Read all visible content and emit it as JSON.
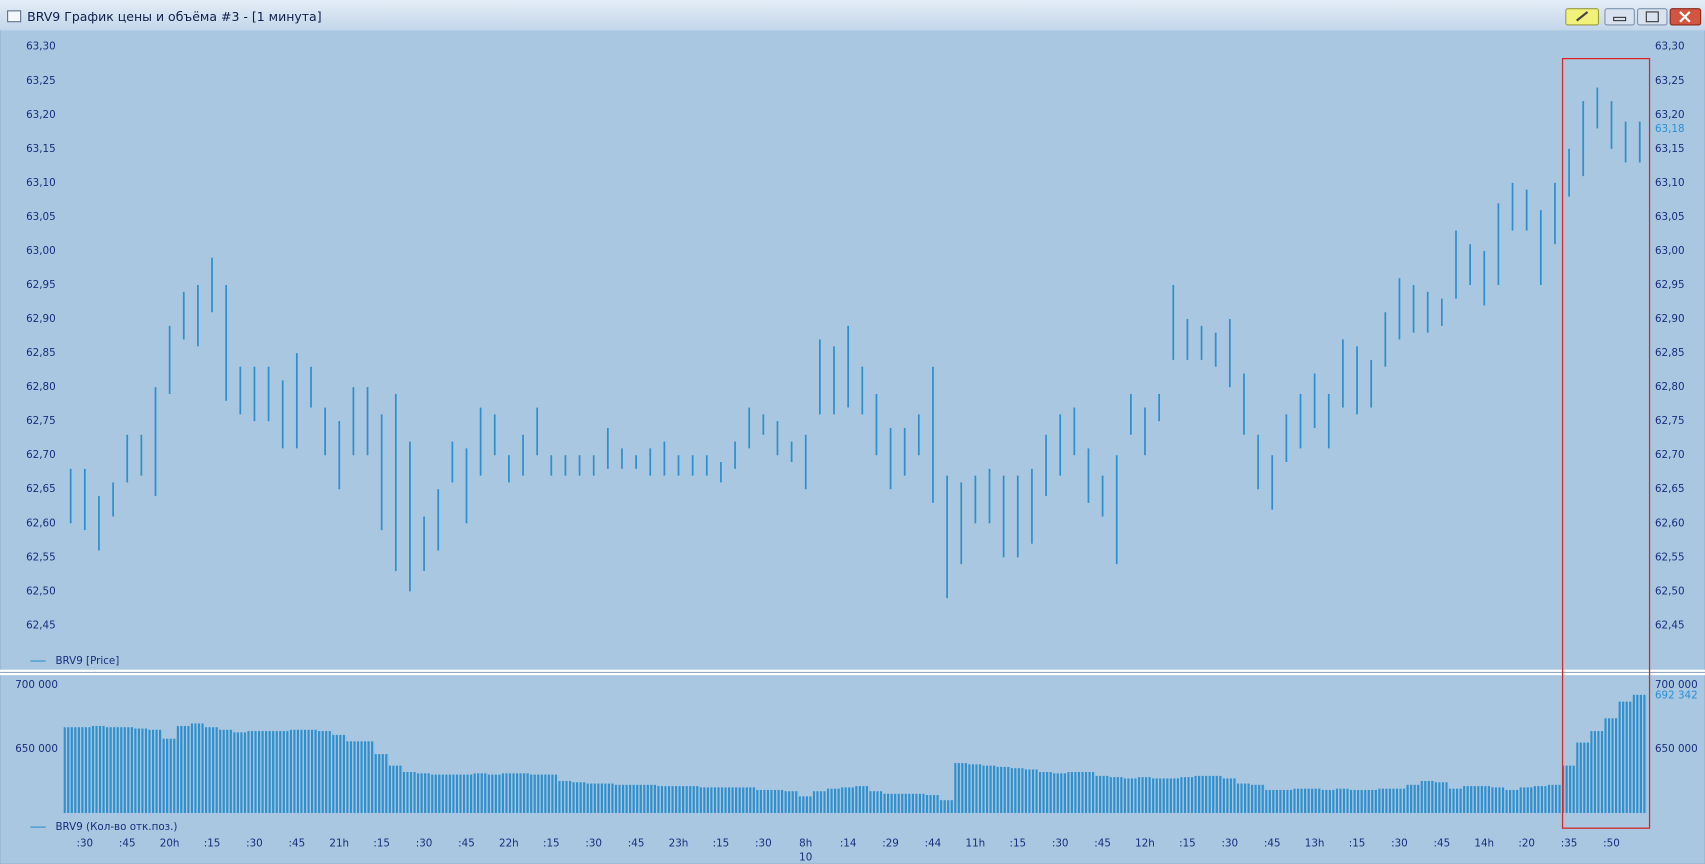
{
  "window": {
    "title": "BRV9 График цены и объёма #3 - [1 минута]"
  },
  "chart_data": [
    {
      "type": "range-bar",
      "series": [
        {
          "name": "BRV9 [Price]",
          "color": "#2f8fcc",
          "high": [
            62.68,
            62.68,
            62.64,
            62.66,
            62.73,
            62.73,
            62.8,
            62.89,
            62.94,
            62.95,
            62.99,
            62.95,
            62.83,
            62.83,
            62.83,
            62.81,
            62.85,
            62.83,
            62.77,
            62.75,
            62.8,
            62.8,
            62.76,
            62.79,
            62.72,
            62.61,
            62.65,
            62.72,
            62.71,
            62.77,
            62.76,
            62.7,
            62.73,
            62.77,
            62.7,
            62.7,
            62.7,
            62.7,
            62.74,
            62.71,
            62.7,
            62.71,
            62.72,
            62.7,
            62.7,
            62.7,
            62.69,
            62.72,
            62.77,
            62.76,
            62.75,
            62.72,
            62.73,
            62.87,
            62.86,
            62.89,
            62.83,
            62.79,
            62.74,
            62.74,
            62.76,
            62.83,
            62.67,
            62.66,
            62.67,
            62.68,
            62.67,
            62.67,
            62.68,
            62.73,
            62.76,
            62.77,
            62.71,
            62.67,
            62.7,
            62.79,
            62.77,
            62.79,
            62.95,
            62.9,
            62.89,
            62.88,
            62.9,
            62.82,
            62.73,
            62.7,
            62.76,
            62.79,
            62.82,
            62.79,
            62.87,
            62.86,
            62.84,
            62.91,
            62.96,
            62.95,
            62.94,
            62.93,
            63.03,
            63.01,
            63.0,
            63.07,
            63.1,
            63.09,
            63.06,
            63.1,
            63.15,
            63.22,
            63.24,
            63.22,
            63.19,
            63.19
          ],
          "low": [
            62.6,
            62.59,
            62.56,
            62.61,
            62.66,
            62.67,
            62.64,
            62.79,
            62.87,
            62.86,
            62.91,
            62.78,
            62.76,
            62.75,
            62.75,
            62.71,
            62.71,
            62.77,
            62.7,
            62.65,
            62.7,
            62.7,
            62.59,
            62.53,
            62.5,
            62.53,
            62.56,
            62.66,
            62.6,
            62.67,
            62.7,
            62.66,
            62.67,
            62.7,
            62.67,
            62.67,
            62.67,
            62.67,
            62.68,
            62.68,
            62.68,
            62.67,
            62.67,
            62.67,
            62.67,
            62.67,
            62.66,
            62.68,
            62.71,
            62.73,
            62.7,
            62.69,
            62.65,
            62.76,
            62.76,
            62.77,
            62.76,
            62.7,
            62.65,
            62.67,
            62.7,
            62.63,
            62.49,
            62.54,
            62.6,
            62.6,
            62.55,
            62.55,
            62.57,
            62.64,
            62.67,
            62.7,
            62.63,
            62.61,
            62.54,
            62.73,
            62.7,
            62.75,
            62.84,
            62.84,
            62.84,
            62.83,
            62.8,
            62.73,
            62.65,
            62.62,
            62.69,
            62.71,
            62.74,
            62.71,
            62.77,
            62.76,
            62.77,
            62.83,
            62.87,
            62.88,
            62.88,
            62.89,
            62.93,
            62.95,
            62.92,
            62.95,
            63.03,
            63.03,
            62.95,
            63.01,
            63.08,
            63.11,
            63.18,
            63.15,
            63.13,
            63.13
          ]
        }
      ],
      "ylim": [
        62.42,
        63.32
      ],
      "yticks": [
        {
          "value": 62.45,
          "label": "62,45"
        },
        {
          "value": 62.5,
          "label": "62,50"
        },
        {
          "value": 62.55,
          "label": "62,55"
        },
        {
          "value": 62.6,
          "label": "62,60"
        },
        {
          "value": 62.65,
          "label": "62,65"
        },
        {
          "value": 62.7,
          "label": "62,70"
        },
        {
          "value": 62.75,
          "label": "62,75"
        },
        {
          "value": 62.8,
          "label": "62,80"
        },
        {
          "value": 62.85,
          "label": "62,85"
        },
        {
          "value": 62.9,
          "label": "62,90"
        },
        {
          "value": 62.95,
          "label": "62,95"
        },
        {
          "value": 63.0,
          "label": "63,00"
        },
        {
          "value": 63.05,
          "label": "63,05"
        },
        {
          "value": 63.1,
          "label": "63,10"
        },
        {
          "value": 63.15,
          "label": "63,15"
        },
        {
          "value": 63.2,
          "label": "63,20"
        },
        {
          "value": 63.25,
          "label": "63,25"
        },
        {
          "value": 63.3,
          "label": "63,30"
        }
      ],
      "last_value": {
        "value": 63.18,
        "label": "63,18"
      }
    },
    {
      "type": "bar",
      "series": [
        {
          "name": "BRV9 (Кол-во отк.поз.)",
          "color": "#2f8fcc",
          "values": [
            667000,
            667000,
            668000,
            667000,
            667000,
            666000,
            665000,
            658000,
            668000,
            670000,
            667000,
            665000,
            663000,
            664000,
            664000,
            664000,
            665000,
            665000,
            664000,
            661000,
            656000,
            656000,
            646000,
            637000,
            632000,
            631000,
            630000,
            630000,
            630000,
            631000,
            630000,
            631000,
            631000,
            630000,
            630000,
            625000,
            624000,
            623000,
            623000,
            622000,
            622000,
            622000,
            621000,
            621000,
            621000,
            620000,
            620000,
            620000,
            620000,
            618000,
            618000,
            617000,
            613000,
            617000,
            619000,
            620000,
            621000,
            617000,
            615000,
            615000,
            615000,
            614000,
            610000,
            639000,
            638000,
            637000,
            636000,
            635000,
            634000,
            632000,
            631000,
            632000,
            632000,
            629000,
            628000,
            627000,
            628000,
            627000,
            627000,
            628000,
            629000,
            629000,
            627000,
            623000,
            622000,
            618000,
            618000,
            619000,
            619000,
            618000,
            619000,
            618000,
            618000,
            619000,
            619000,
            622000,
            625000,
            624000,
            619000,
            621000,
            621000,
            620000,
            618000,
            620000,
            621000,
            622000,
            637000,
            655000,
            664000,
            674000,
            687000,
            692342
          ]
        }
      ],
      "ylim": [
        600000,
        706000
      ],
      "yticks": [
        {
          "value": 650000,
          "label": "650 000"
        },
        {
          "value": 700000,
          "label": "700 000"
        }
      ],
      "last_value": {
        "value": 692342,
        "label": "692 342"
      },
      "categories": [
        null,
        ":30",
        null,
        null,
        ":45",
        null,
        null,
        "20h",
        null,
        null,
        ":15",
        null,
        null,
        ":30",
        null,
        null,
        ":45",
        null,
        null,
        "21h",
        null,
        null,
        ":15",
        null,
        null,
        ":30",
        null,
        null,
        ":45",
        null,
        null,
        "22h",
        null,
        null,
        ":15",
        null,
        null,
        ":30",
        null,
        null,
        ":45",
        null,
        null,
        "23h",
        null,
        null,
        ":15",
        null,
        null,
        ":30",
        null,
        null,
        "8h",
        null,
        null,
        ":14",
        null,
        null,
        ":29",
        null,
        null,
        ":44",
        null,
        null,
        "11h",
        null,
        null,
        ":15",
        null,
        null,
        ":30",
        null,
        null,
        ":45",
        null,
        null,
        "12h",
        null,
        null,
        ":15",
        null,
        null,
        ":30",
        null,
        null,
        ":45",
        null,
        null,
        "13h",
        null,
        null,
        ":15",
        null,
        null,
        ":30",
        null,
        null,
        ":45",
        null,
        null,
        "14h",
        null,
        null,
        ":20",
        null,
        null,
        ":35",
        null,
        null,
        ":50",
        null,
        null
      ],
      "date_labels": [
        null,
        null,
        null,
        null,
        null,
        null,
        null,
        null,
        null,
        null,
        null,
        null,
        null,
        null,
        null,
        null,
        null,
        null,
        null,
        null,
        null,
        null,
        null,
        null,
        null,
        null,
        null,
        null,
        null,
        null,
        null,
        null,
        null,
        null,
        null,
        null,
        null,
        null,
        null,
        null,
        null,
        null,
        null,
        null,
        null,
        null,
        null,
        null,
        null,
        null,
        null,
        null,
        "10",
        null,
        null,
        null,
        null,
        null,
        null,
        null,
        null,
        null,
        null,
        null,
        null,
        null,
        null,
        null,
        null,
        null,
        null,
        null,
        null,
        null,
        null,
        null,
        null,
        null,
        null,
        null,
        null,
        null,
        null,
        null,
        null,
        null,
        null,
        null,
        null,
        null,
        null,
        null,
        null,
        null,
        null,
        null,
        null,
        null,
        null,
        null,
        null,
        null,
        null,
        null,
        null,
        null,
        null,
        null,
        null,
        null,
        null,
        null
      ]
    }
  ]
}
